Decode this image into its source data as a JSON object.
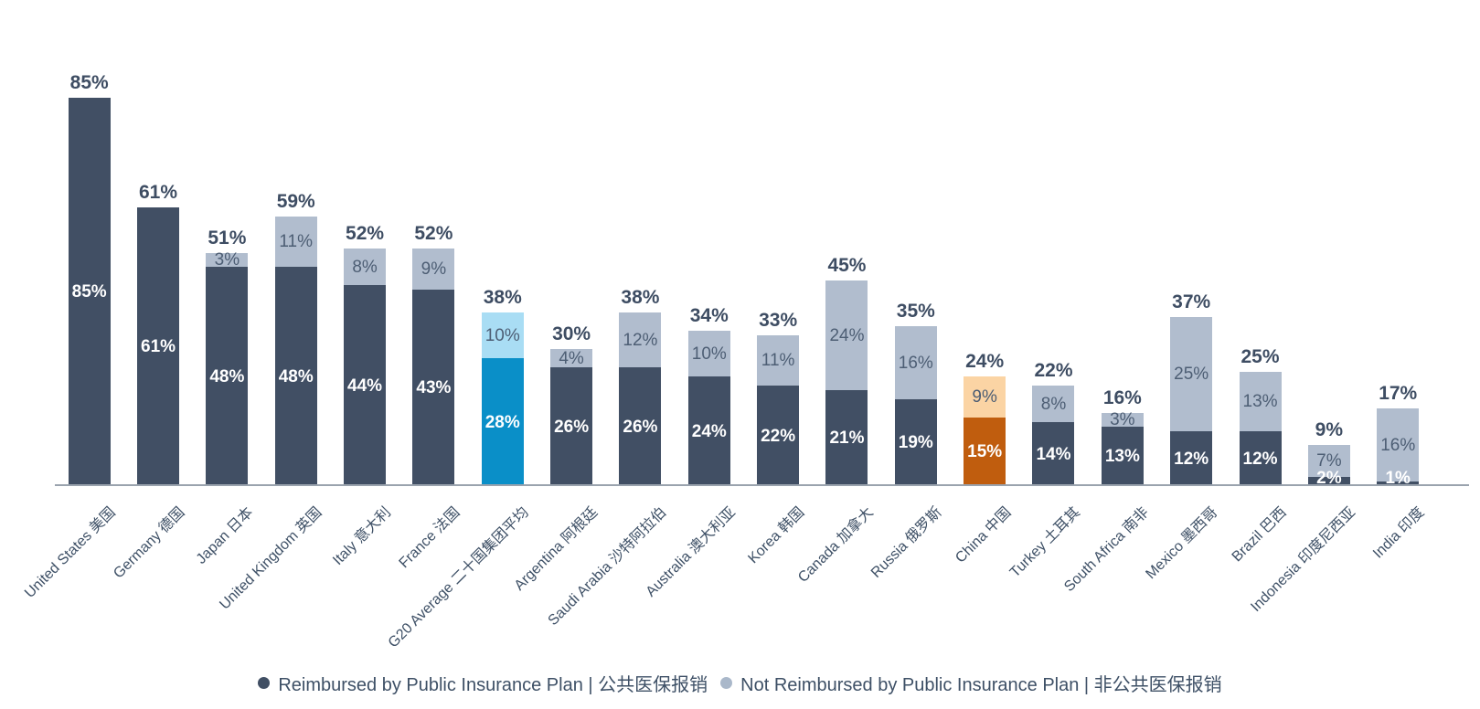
{
  "chart_data": {
    "type": "bar",
    "subtype": "stacked",
    "title": "",
    "unit": "%",
    "ylim": [
      0,
      85
    ],
    "grid": false,
    "legend_position": "bottom",
    "series_names": [
      "Reimbursed by Public Insurance Plan | 公共医保报销",
      "Not Reimbursed by Public Insurance Plan | 非公共医保报销"
    ],
    "colors": {
      "bar_dark": "#414f64",
      "bar_light": "#b1bdce",
      "highlight_blue": "#0a8fc8",
      "highlight_blue_light": "#a9ddf4",
      "highlight_orange": "#c05d0e",
      "highlight_orange_light": "#fbd4a4",
      "axis_line": "#9aa3ae",
      "total_label": "#3e4d63",
      "label_on_light": "#4d5e74",
      "label_on_dark": "#ffffff",
      "axis_text": "#3e5066"
    },
    "bars": [
      {
        "label": "United States 美国",
        "reimbursed": 85,
        "not_reimbursed": 0,
        "total": 85
      },
      {
        "label": "Germany 德国",
        "reimbursed": 61,
        "not_reimbursed": 0,
        "total": 61
      },
      {
        "label": "Japan 日本",
        "reimbursed": 48,
        "not_reimbursed": 3,
        "total": 51
      },
      {
        "label": "United Kingdom 英国",
        "reimbursed": 48,
        "not_reimbursed": 11,
        "total": 59
      },
      {
        "label": "Italy 意大利",
        "reimbursed": 44,
        "not_reimbursed": 8,
        "total": 52
      },
      {
        "label": "France 法国",
        "reimbursed": 43,
        "not_reimbursed": 9,
        "total": 52
      },
      {
        "label": "G20 Average 二十国集团平均",
        "reimbursed": 28,
        "not_reimbursed": 10,
        "total": 38,
        "color_main": "#0a8fc8",
        "color_top": "#a9ddf4"
      },
      {
        "label": "Argentina 阿根廷",
        "reimbursed": 26,
        "not_reimbursed": 4,
        "total": 30
      },
      {
        "label": "Saudi Arabia 沙特阿拉伯",
        "reimbursed": 26,
        "not_reimbursed": 12,
        "total": 38
      },
      {
        "label": "Australia 澳大利亚",
        "reimbursed": 24,
        "not_reimbursed": 10,
        "total": 34
      },
      {
        "label": "Korea 韩国",
        "reimbursed": 22,
        "not_reimbursed": 11,
        "total": 33
      },
      {
        "label": "Canada 加拿大",
        "reimbursed": 21,
        "not_reimbursed": 24,
        "total": 45
      },
      {
        "label": "Russia 俄罗斯",
        "reimbursed": 19,
        "not_reimbursed": 16,
        "total": 35
      },
      {
        "label": "China 中国",
        "reimbursed": 15,
        "not_reimbursed": 9,
        "total": 24,
        "color_main": "#c05d0e",
        "color_top": "#fbd4a4"
      },
      {
        "label": "Turkey 土耳其",
        "reimbursed": 14,
        "not_reimbursed": 8,
        "total": 22
      },
      {
        "label": "South Africa 南非",
        "reimbursed": 13,
        "not_reimbursed": 3,
        "total": 16
      },
      {
        "label": "Mexico 墨西哥",
        "reimbursed": 12,
        "not_reimbursed": 25,
        "total": 37
      },
      {
        "label": "Brazil 巴西",
        "reimbursed": 12,
        "not_reimbursed": 13,
        "total": 25
      },
      {
        "label": "Indonesia 印度尼西亚",
        "reimbursed": 2,
        "not_reimbursed": 7,
        "total": 9
      },
      {
        "label": "India 印度",
        "reimbursed": 1,
        "not_reimbursed": 16,
        "total": 17
      }
    ]
  },
  "legend": {
    "items": [
      {
        "label": "Reimbursed by Public Insurance Plan | 公共医保报销",
        "color": "#414f64"
      },
      {
        "label": "Not Reimbursed by Public Insurance Plan | 非公共医保报销",
        "color": "#aab8ca"
      }
    ]
  }
}
